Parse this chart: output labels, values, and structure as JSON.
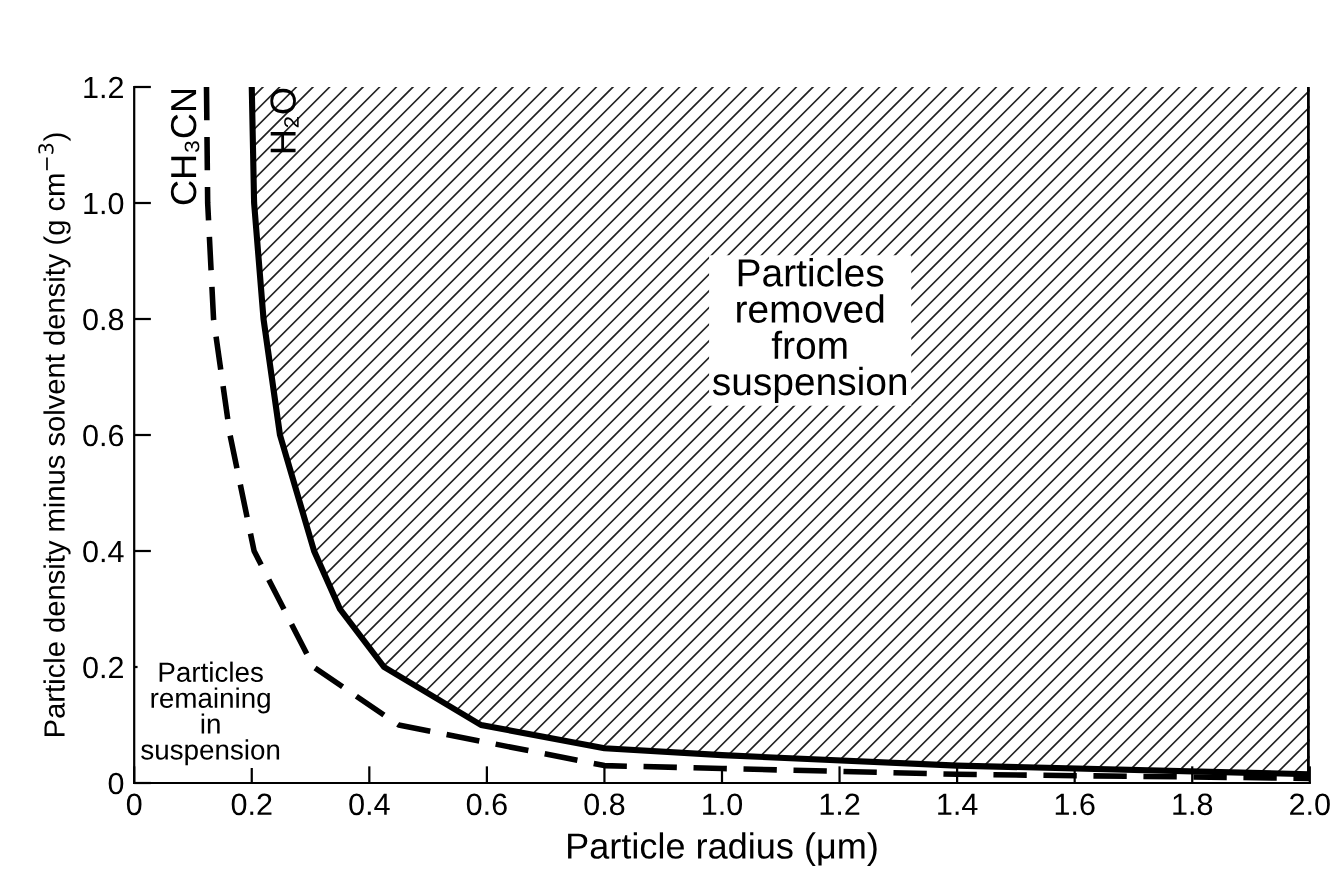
{
  "chart_data": {
    "type": "line",
    "xlabel": "Particle radius (μm)",
    "ylabel": "Particle density minus solvent density (g cm$^{−3}$)",
    "xlim": [
      0,
      2.0
    ],
    "ylim": [
      0,
      1.2
    ],
    "xticks": [
      0,
      0.2,
      0.4,
      0.6,
      0.8,
      {
        "value": 1,
        "label": "1.0"
      },
      1.2,
      1.4,
      1.6,
      1.8,
      {
        "value": 2,
        "label": "2.0"
      }
    ],
    "yticks": [
      0,
      0.2,
      0.4,
      0.6,
      0.8,
      {
        "value": 1,
        "label": "1.0"
      },
      1.2
    ],
    "grid": false,
    "series": [
      {
        "name": "CH₃CN",
        "color": "#000000",
        "line_style": "dashed",
        "x": [
          0.123,
          0.125,
          0.135,
          0.163,
          0.204,
          0.305,
          0.45,
          0.6,
          0.8,
          1.0,
          1.4,
          2.0
        ],
        "values": [
          1.2,
          1.0,
          0.8,
          0.6,
          0.4,
          0.2,
          0.1,
          0.07,
          0.03,
          0.025,
          0.015,
          0.008
        ]
      },
      {
        "name": "H₂O",
        "color": "#000000",
        "line_style": "solid",
        "x": [
          0.2,
          0.204,
          0.22,
          0.248,
          0.306,
          0.35,
          0.425,
          0.59,
          0.8,
          1.0,
          1.4,
          2.0
        ],
        "values": [
          1.2,
          1.0,
          0.8,
          0.6,
          0.4,
          0.3,
          0.2,
          0.1,
          0.06,
          0.048,
          0.03,
          0.015
        ]
      }
    ],
    "annotations": [
      "Particles\nremoved\nfrom\nsuspension",
      "Particles\nremaining\nin\nsuspension"
    ]
  }
}
